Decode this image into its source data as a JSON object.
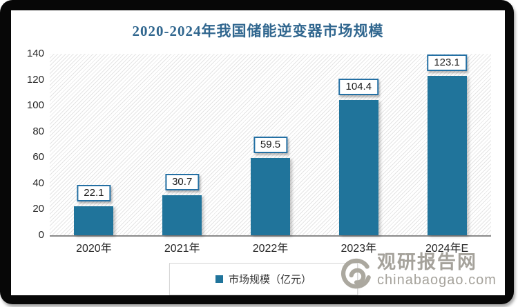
{
  "chart_data": {
    "type": "bar",
    "title": "2020-2024年我国储能逆变器市场规模",
    "categories": [
      "2020年",
      "2021年",
      "2022年",
      "2023年",
      "2024年E"
    ],
    "values": [
      22.1,
      30.7,
      59.5,
      104.4,
      123.1
    ],
    "series_name": "市场规模（亿元）",
    "xlabel": "",
    "ylabel": "",
    "ylim": [
      0,
      140
    ],
    "yticks": [
      0,
      20,
      40,
      60,
      80,
      100,
      120,
      140
    ],
    "grid": false,
    "legend_position": "bottom",
    "plot_background": "diagonal-hatch",
    "bar_color": "#20749B",
    "label_box_border_color": "#2470A4",
    "title_color": "#31678F",
    "axis_line_color": "#8a8a8a"
  },
  "legend": {
    "label": "市场规模（亿元）"
  },
  "watermark": {
    "brand": "观研报告网",
    "domain": "chinabaogao.com",
    "color": "#A5A29B"
  }
}
